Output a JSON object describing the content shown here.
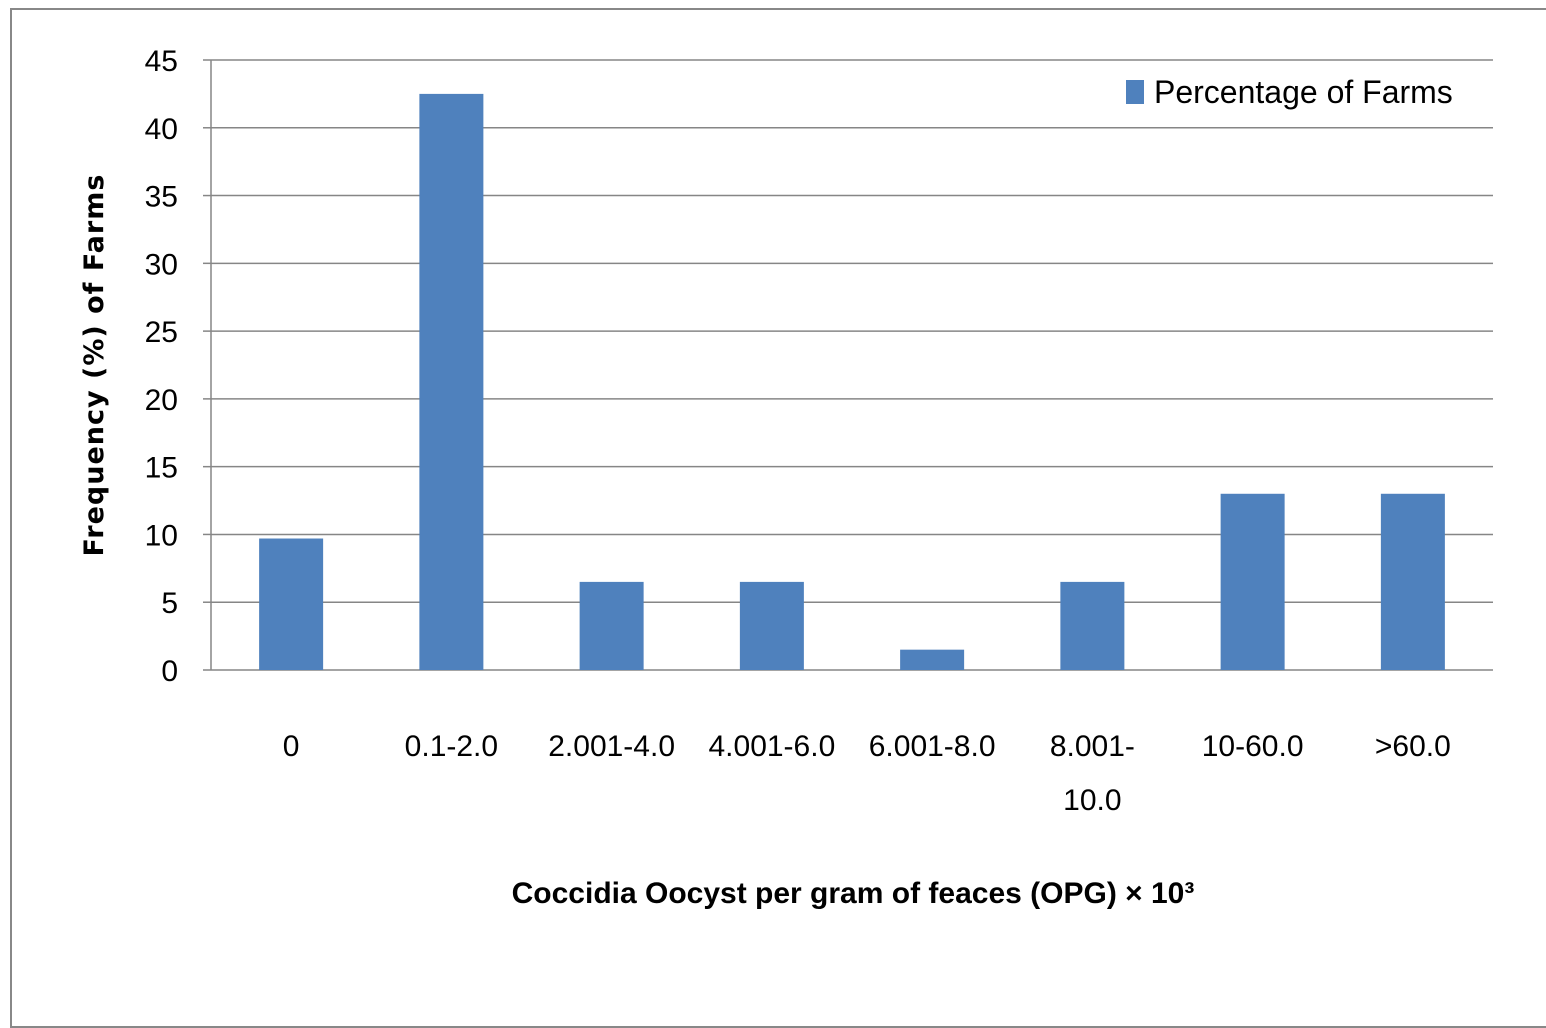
{
  "chart_data": {
    "type": "bar",
    "categories": [
      "0",
      "0.1-2.0",
      "2.001-4.0",
      "4.001-6.0",
      "6.001-8.0",
      "8.001-10.0",
      "10-60.0",
      ">60.0"
    ],
    "category_lines": [
      [
        "0"
      ],
      [
        "0.1-2.0"
      ],
      [
        "2.001-4.0"
      ],
      [
        "4.001-6.0"
      ],
      [
        "6.001-8.0"
      ],
      [
        "8.001-",
        "10.0"
      ],
      [
        "10-60.0"
      ],
      [
        ">60.0"
      ]
    ],
    "series": [
      {
        "name": "Percentage of Farms",
        "values": [
          9.7,
          42.5,
          6.5,
          6.5,
          1.5,
          6.5,
          13.0,
          13.0
        ]
      }
    ],
    "xlabel": "Coccidia  Oocyst per gram of feaces (OPG) × 10³",
    "ylabel": "Frequency  (%) of Farms",
    "ylim": [
      0,
      45
    ],
    "yticks": [
      0,
      5,
      10,
      15,
      20,
      25,
      30,
      35,
      40,
      45
    ],
    "grid": true,
    "legend": "top-right",
    "colors": {
      "bar": "#4f81bd",
      "grid": "#868686",
      "axis": "#868686"
    }
  }
}
